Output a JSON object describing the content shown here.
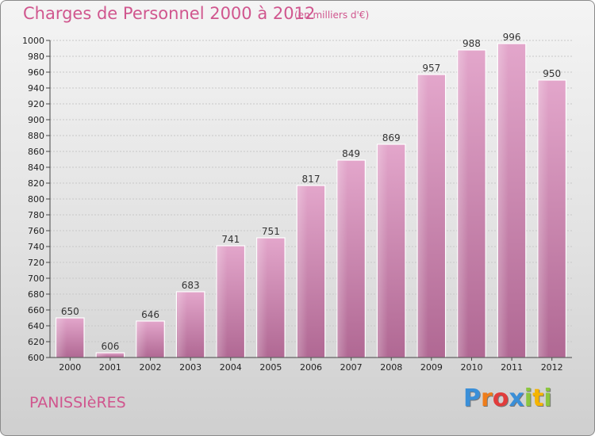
{
  "header": {
    "title": "Charges de Personnel 2000 à 2012",
    "unit": "(en milliers d'€)"
  },
  "footer": {
    "commune": "PANISSIèRES",
    "brand": [
      "P",
      "r",
      "o",
      "x",
      "i",
      "t",
      "i"
    ],
    "brand_colors": [
      "#3a8fd8",
      "#ef7d1a",
      "#e13c3c",
      "#3a8fd8",
      "#8cc63e",
      "#f5b400",
      "#8cc63e"
    ]
  },
  "chart_data": {
    "type": "bar",
    "title": "Charges de Personnel 2000 à 2012",
    "subtitle": "(en milliers d'€)",
    "categories": [
      "2000",
      "2001",
      "2002",
      "2003",
      "2004",
      "2005",
      "2006",
      "2007",
      "2008",
      "2009",
      "2010",
      "2011",
      "2012"
    ],
    "values": [
      650,
      606,
      646,
      683,
      741,
      751,
      817,
      849,
      869,
      957,
      988,
      996,
      950
    ],
    "ylim": [
      600,
      1000
    ],
    "yticks": [
      600,
      620,
      640,
      660,
      680,
      700,
      720,
      740,
      760,
      780,
      800,
      820,
      840,
      860,
      880,
      900,
      920,
      940,
      960,
      980,
      1000
    ],
    "grid": true,
    "bar_color": "#d98ab8"
  }
}
